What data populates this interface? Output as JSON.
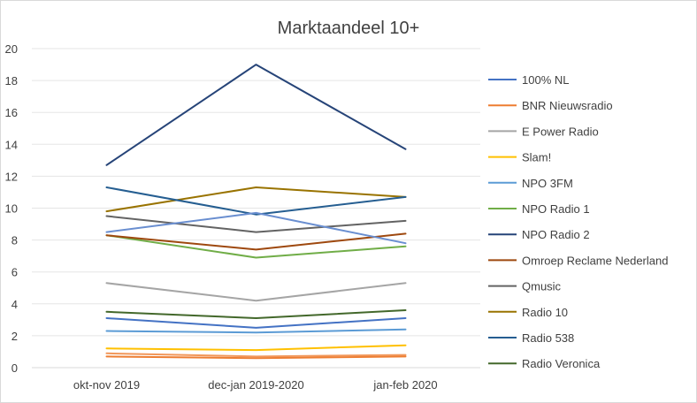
{
  "chart_data": {
    "type": "line",
    "title": "Marktaandeel 10+",
    "xlabel": "",
    "ylabel": "",
    "categories": [
      "okt-nov 2019",
      "dec-jan 2019-2020",
      "jan-feb 2020"
    ],
    "ylim": [
      0,
      20
    ],
    "yticks": [
      0,
      2,
      4,
      6,
      8,
      10,
      12,
      14,
      16,
      18,
      20
    ],
    "grid": true,
    "legend_position": "right",
    "series": [
      {
        "name": "100% NL",
        "color": "#4472c4",
        "values": [
          3.1,
          2.5,
          3.1
        ]
      },
      {
        "name": "BNR Nieuwsradio",
        "color": "#ed7d31",
        "values": [
          0.7,
          0.6,
          0.7
        ]
      },
      {
        "name": "E Power Radio",
        "color": "#a5a5a5",
        "values": [
          5.3,
          4.2,
          5.3
        ]
      },
      {
        "name": "Slam!",
        "color": "#ffc000",
        "values": [
          1.2,
          1.1,
          1.4
        ]
      },
      {
        "name": "NPO 3FM",
        "color": "#5b9bd5",
        "values": [
          2.3,
          2.2,
          2.4
        ]
      },
      {
        "name": "NPO Radio 1",
        "color": "#70ad47",
        "values": [
          8.3,
          6.9,
          7.6
        ]
      },
      {
        "name": "NPO Radio 2",
        "color": "#264478",
        "values": [
          12.7,
          19.0,
          13.7
        ]
      },
      {
        "name": "Omroep Reclame Nederland",
        "color": "#9e480e",
        "values": [
          8.3,
          7.4,
          8.4
        ]
      },
      {
        "name": "Qmusic",
        "color": "#636363",
        "values": [
          9.5,
          8.5,
          9.2
        ]
      },
      {
        "name": "Radio 10",
        "color": "#997300",
        "values": [
          9.8,
          11.3,
          10.7
        ]
      },
      {
        "name": "Radio 538",
        "color": "#255e91",
        "values": [
          11.3,
          9.6,
          10.7
        ]
      },
      {
        "name": "Radio Veronica",
        "color": "#43682b",
        "values": [
          3.5,
          3.1,
          3.6
        ]
      }
    ],
    "extra_lines": [
      {
        "color": "#698ed0",
        "values": [
          8.5,
          9.7,
          7.8
        ]
      },
      {
        "color": "#f1975a",
        "values": [
          0.9,
          0.7,
          0.8
        ]
      }
    ]
  }
}
